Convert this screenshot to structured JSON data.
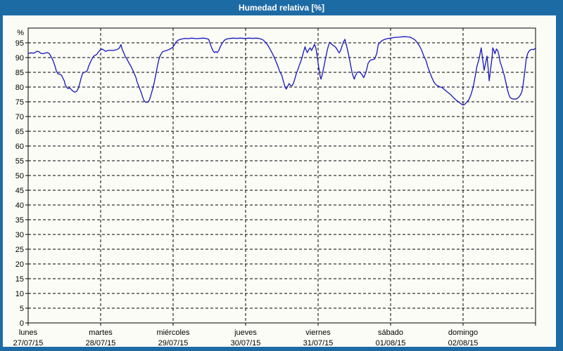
{
  "window": {
    "title": "Humedad relativa [%]"
  },
  "colors": {
    "titlebar_bg": "#1d6ba5",
    "titlebar_text": "#ffffff",
    "window_border": "#1d6ba5",
    "window_bg": "#fcfcf7",
    "line": "#1515bd",
    "grid": "#000000",
    "label_text": "#000000"
  },
  "chart_data": {
    "type": "line",
    "title": "Humedad relativa [%]",
    "y_unit_label": "%",
    "xlabel": "",
    "ylabel": "",
    "grid": "dashed",
    "legend": "none",
    "ylim": [
      0,
      100
    ],
    "xlim_days": [
      0,
      7
    ],
    "y_ticks": [
      0,
      5,
      10,
      15,
      20,
      25,
      30,
      35,
      40,
      45,
      50,
      55,
      60,
      65,
      70,
      75,
      80,
      85,
      90,
      95
    ],
    "x_tick_labels": [
      {
        "name": "lunes",
        "date": "27/07/15"
      },
      {
        "name": "martes",
        "date": "28/07/15"
      },
      {
        "name": "miércoles",
        "date": "29/07/15"
      },
      {
        "name": "jueves",
        "date": "30/07/15"
      },
      {
        "name": "viernes",
        "date": "31/07/15"
      },
      {
        "name": "sábado",
        "date": "01/08/15"
      },
      {
        "name": "domingo",
        "date": "02/08/15"
      }
    ],
    "series": [
      {
        "name": "Humedad relativa [%]",
        "x_units": "days since 27/07/15 00:00",
        "y_units": "%",
        "points": [
          [
            0.0,
            91.4
          ],
          [
            0.04,
            91.6
          ],
          [
            0.08,
            91.5
          ],
          [
            0.12,
            92.1
          ],
          [
            0.15,
            92.0
          ],
          [
            0.17,
            91.5
          ],
          [
            0.2,
            91.3
          ],
          [
            0.23,
            91.5
          ],
          [
            0.26,
            91.7
          ],
          [
            0.29,
            91.4
          ],
          [
            0.31,
            90.6
          ],
          [
            0.33,
            89.7
          ],
          [
            0.35,
            88.6
          ],
          [
            0.37,
            87.1
          ],
          [
            0.39,
            85.4
          ],
          [
            0.41,
            84.5
          ],
          [
            0.44,
            84.3
          ],
          [
            0.46,
            84.0
          ],
          [
            0.48,
            83.0
          ],
          [
            0.5,
            82.0
          ],
          [
            0.51,
            80.9
          ],
          [
            0.53,
            79.9
          ],
          [
            0.55,
            79.5
          ],
          [
            0.57,
            79.7
          ],
          [
            0.59,
            79.3
          ],
          [
            0.61,
            78.8
          ],
          [
            0.63,
            78.4
          ],
          [
            0.65,
            78.3
          ],
          [
            0.67,
            78.6
          ],
          [
            0.69,
            79.5
          ],
          [
            0.71,
            81.0
          ],
          [
            0.73,
            83.0
          ],
          [
            0.75,
            84.6
          ],
          [
            0.77,
            85.0
          ],
          [
            0.8,
            85.2
          ],
          [
            0.82,
            85.8
          ],
          [
            0.83,
            86.8
          ],
          [
            0.85,
            87.9
          ],
          [
            0.87,
            89.0
          ],
          [
            0.89,
            90.0
          ],
          [
            0.91,
            90.6
          ],
          [
            0.93,
            90.8
          ],
          [
            0.95,
            91.2
          ],
          [
            0.97,
            91.9
          ],
          [
            0.99,
            92.5
          ],
          [
            1.0,
            92.7
          ],
          [
            1.02,
            92.9
          ],
          [
            1.04,
            92.6
          ],
          [
            1.07,
            92.1
          ],
          [
            1.1,
            92.4
          ],
          [
            1.13,
            92.5
          ],
          [
            1.17,
            92.4
          ],
          [
            1.19,
            92.5
          ],
          [
            1.22,
            92.7
          ],
          [
            1.24,
            92.9
          ],
          [
            1.26,
            93.3
          ],
          [
            1.28,
            94.4
          ],
          [
            1.3,
            92.6
          ],
          [
            1.32,
            91.6
          ],
          [
            1.34,
            90.3
          ],
          [
            1.36,
            89.6
          ],
          [
            1.39,
            88.2
          ],
          [
            1.42,
            86.9
          ],
          [
            1.45,
            85.4
          ],
          [
            1.47,
            84.2
          ],
          [
            1.49,
            83.0
          ],
          [
            1.5,
            81.9
          ],
          [
            1.52,
            80.7
          ],
          [
            1.54,
            79.4
          ],
          [
            1.56,
            78.1
          ],
          [
            1.58,
            76.6
          ],
          [
            1.6,
            75.3
          ],
          [
            1.62,
            74.9
          ],
          [
            1.64,
            74.8
          ],
          [
            1.66,
            75.0
          ],
          [
            1.68,
            76.1
          ],
          [
            1.7,
            77.8
          ],
          [
            1.72,
            79.6
          ],
          [
            1.74,
            81.6
          ],
          [
            1.76,
            84.1
          ],
          [
            1.78,
            86.6
          ],
          [
            1.8,
            89.0
          ],
          [
            1.82,
            90.6
          ],
          [
            1.84,
            91.4
          ],
          [
            1.85,
            91.9
          ],
          [
            1.88,
            92.2
          ],
          [
            1.91,
            92.4
          ],
          [
            1.94,
            92.7
          ],
          [
            1.97,
            93.1
          ],
          [
            2.0,
            93.6
          ],
          [
            2.02,
            94.4
          ],
          [
            2.04,
            95.3
          ],
          [
            2.07,
            95.9
          ],
          [
            2.1,
            96.2
          ],
          [
            2.14,
            96.4
          ],
          [
            2.17,
            96.5
          ],
          [
            2.21,
            96.4
          ],
          [
            2.25,
            96.6
          ],
          [
            2.29,
            96.5
          ],
          [
            2.33,
            96.4
          ],
          [
            2.37,
            96.5
          ],
          [
            2.41,
            96.6
          ],
          [
            2.45,
            96.5
          ],
          [
            2.49,
            96.2
          ],
          [
            2.51,
            94.8
          ],
          [
            2.53,
            93.4
          ],
          [
            2.55,
            92.3
          ],
          [
            2.57,
            91.7
          ],
          [
            2.59,
            92.0
          ],
          [
            2.61,
            91.7
          ],
          [
            2.63,
            92.4
          ],
          [
            2.65,
            93.6
          ],
          [
            2.68,
            95.0
          ],
          [
            2.71,
            95.9
          ],
          [
            2.74,
            96.3
          ],
          [
            2.79,
            96.5
          ],
          [
            2.83,
            96.6
          ],
          [
            2.88,
            96.5
          ],
          [
            2.93,
            96.6
          ],
          [
            2.97,
            96.5
          ],
          [
            3.0,
            96.5
          ],
          [
            3.05,
            96.6
          ],
          [
            3.1,
            96.5
          ],
          [
            3.15,
            96.6
          ],
          [
            3.18,
            96.5
          ],
          [
            3.21,
            96.3
          ],
          [
            3.24,
            96.0
          ],
          [
            3.27,
            95.3
          ],
          [
            3.3,
            94.4
          ],
          [
            3.33,
            93.2
          ],
          [
            3.36,
            91.8
          ],
          [
            3.39,
            90.3
          ],
          [
            3.42,
            88.6
          ],
          [
            3.45,
            86.7
          ],
          [
            3.47,
            85.3
          ],
          [
            3.49,
            84.4
          ],
          [
            3.5,
            83.9
          ],
          [
            3.52,
            82.0
          ],
          [
            3.54,
            80.4
          ],
          [
            3.56,
            79.3
          ],
          [
            3.58,
            80.2
          ],
          [
            3.6,
            81.2
          ],
          [
            3.62,
            80.5
          ],
          [
            3.64,
            80.4
          ],
          [
            3.66,
            81.3
          ],
          [
            3.68,
            82.8
          ],
          [
            3.7,
            84.6
          ],
          [
            3.72,
            85.9
          ],
          [
            3.74,
            87.3
          ],
          [
            3.76,
            88.6
          ],
          [
            3.78,
            90.1
          ],
          [
            3.8,
            92.0
          ],
          [
            3.82,
            93.7
          ],
          [
            3.83,
            92.8
          ],
          [
            3.85,
            91.7
          ],
          [
            3.87,
            92.6
          ],
          [
            3.89,
            93.3
          ],
          [
            3.91,
            92.4
          ],
          [
            3.93,
            93.4
          ],
          [
            3.95,
            94.5
          ],
          [
            3.97,
            93.2
          ],
          [
            3.99,
            90.0
          ],
          [
            4.01,
            86.5
          ],
          [
            4.03,
            83.5
          ],
          [
            4.04,
            82.7
          ],
          [
            4.06,
            84.5
          ],
          [
            4.08,
            86.8
          ],
          [
            4.1,
            89.4
          ],
          [
            4.12,
            91.8
          ],
          [
            4.14,
            93.8
          ],
          [
            4.16,
            95.2
          ],
          [
            4.18,
            94.7
          ],
          [
            4.21,
            94.1
          ],
          [
            4.24,
            93.6
          ],
          [
            4.27,
            92.4
          ],
          [
            4.29,
            91.6
          ],
          [
            4.31,
            92.4
          ],
          [
            4.33,
            93.9
          ],
          [
            4.35,
            95.3
          ],
          [
            4.37,
            96.2
          ],
          [
            4.39,
            94.3
          ],
          [
            4.41,
            92.2
          ],
          [
            4.43,
            89.9
          ],
          [
            4.45,
            87.2
          ],
          [
            4.47,
            84.8
          ],
          [
            4.49,
            83.2
          ],
          [
            4.5,
            82.7
          ],
          [
            4.51,
            83.6
          ],
          [
            4.54,
            85.0
          ],
          [
            4.57,
            85.2
          ],
          [
            4.6,
            84.4
          ],
          [
            4.63,
            83.2
          ],
          [
            4.66,
            85.0
          ],
          [
            4.69,
            88.1
          ],
          [
            4.72,
            89.1
          ],
          [
            4.75,
            89.3
          ],
          [
            4.78,
            89.5
          ],
          [
            4.81,
            91.4
          ],
          [
            4.83,
            94.4
          ],
          [
            4.85,
            95.0
          ],
          [
            4.88,
            95.7
          ],
          [
            4.91,
            96.1
          ],
          [
            4.95,
            96.4
          ],
          [
            5.0,
            96.6
          ],
          [
            5.05,
            96.8
          ],
          [
            5.1,
            96.9
          ],
          [
            5.15,
            97.0
          ],
          [
            5.19,
            97.1
          ],
          [
            5.24,
            97.0
          ],
          [
            5.27,
            96.9
          ],
          [
            5.31,
            96.4
          ],
          [
            5.34,
            95.9
          ],
          [
            5.37,
            95.0
          ],
          [
            5.4,
            93.9
          ],
          [
            5.43,
            92.4
          ],
          [
            5.46,
            90.4
          ],
          [
            5.49,
            88.9
          ],
          [
            5.51,
            87.1
          ],
          [
            5.54,
            85.1
          ],
          [
            5.57,
            83.2
          ],
          [
            5.6,
            81.6
          ],
          [
            5.63,
            80.7
          ],
          [
            5.67,
            80.2
          ],
          [
            5.71,
            79.8
          ],
          [
            5.75,
            79.0
          ],
          [
            5.79,
            78.2
          ],
          [
            5.83,
            77.4
          ],
          [
            5.86,
            76.6
          ],
          [
            5.9,
            75.7
          ],
          [
            5.94,
            74.9
          ],
          [
            5.98,
            74.2
          ],
          [
            6.0,
            73.9
          ],
          [
            6.02,
            74.1
          ],
          [
            6.05,
            74.8
          ],
          [
            6.08,
            75.7
          ],
          [
            6.11,
            77.5
          ],
          [
            6.14,
            80.0
          ],
          [
            6.17,
            84.0
          ],
          [
            6.19,
            86.9
          ],
          [
            6.22,
            89.5
          ],
          [
            6.25,
            93.3
          ],
          [
            6.27,
            89.5
          ],
          [
            6.29,
            85.7
          ],
          [
            6.31,
            88.0
          ],
          [
            6.33,
            90.5
          ],
          [
            6.35,
            85.5
          ],
          [
            6.36,
            82.1
          ],
          [
            6.38,
            86.0
          ],
          [
            6.4,
            90.0
          ],
          [
            6.41,
            93.3
          ],
          [
            6.43,
            92.1
          ],
          [
            6.44,
            91.3
          ],
          [
            6.46,
            92.9
          ],
          [
            6.48,
            92.3
          ],
          [
            6.5,
            90.3
          ],
          [
            6.51,
            88.6
          ],
          [
            6.53,
            87.2
          ],
          [
            6.55,
            85.6
          ],
          [
            6.57,
            83.8
          ],
          [
            6.59,
            81.6
          ],
          [
            6.61,
            79.3
          ],
          [
            6.63,
            77.5
          ],
          [
            6.65,
            76.4
          ],
          [
            6.68,
            76.0
          ],
          [
            6.71,
            75.9
          ],
          [
            6.74,
            76.0
          ],
          [
            6.77,
            76.6
          ],
          [
            6.79,
            77.3
          ],
          [
            6.81,
            78.3
          ],
          [
            6.82,
            79.4
          ],
          [
            6.84,
            83.0
          ],
          [
            6.86,
            87.0
          ],
          [
            6.87,
            89.3
          ],
          [
            6.89,
            91.3
          ],
          [
            6.91,
            92.2
          ],
          [
            6.93,
            92.6
          ],
          [
            6.95,
            92.8
          ],
          [
            6.97,
            92.7
          ],
          [
            6.99,
            93.0
          ],
          [
            7.0,
            92.9
          ]
        ]
      }
    ]
  }
}
